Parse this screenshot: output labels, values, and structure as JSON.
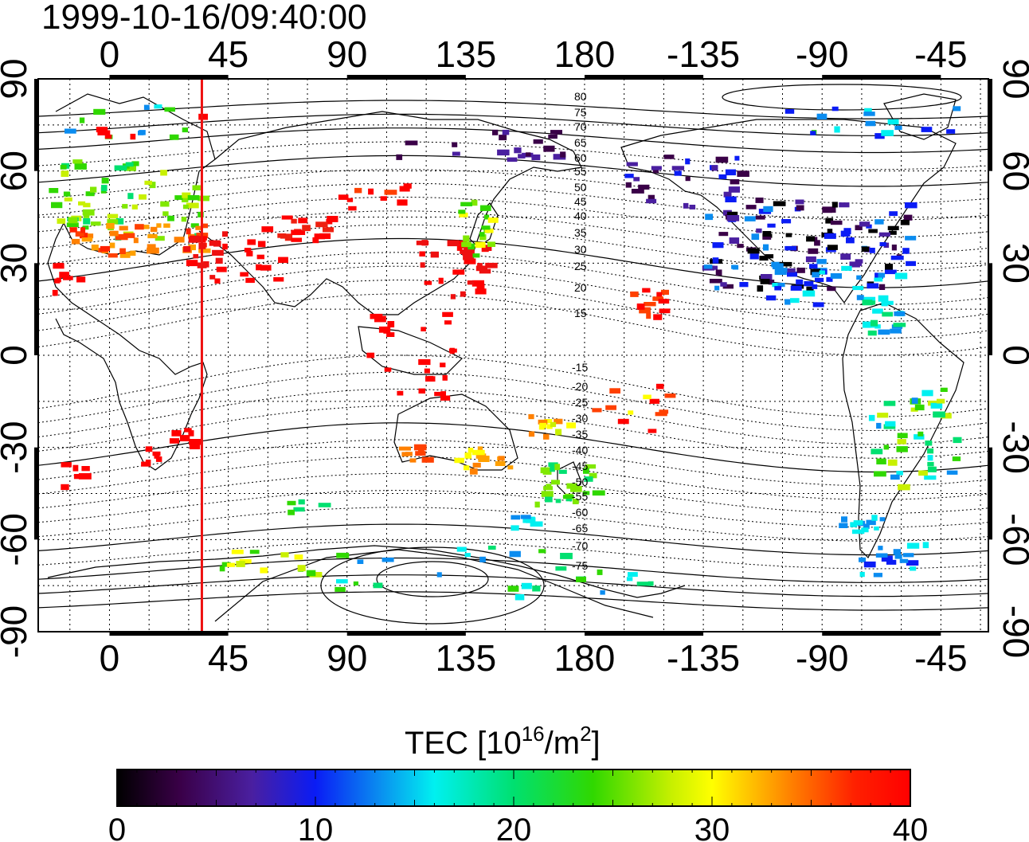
{
  "timestamp": "1999-10-16/09:40:00",
  "axes": {
    "top_ticks": [
      "0",
      "45",
      "90",
      "135",
      "180",
      "-135",
      "-90",
      "-45"
    ],
    "bottom_ticks": [
      "0",
      "45",
      "90",
      "135",
      "180",
      "-135",
      "-90",
      "-45"
    ],
    "left_ticks": [
      "90",
      "60",
      "30",
      "0",
      "-30",
      "-60",
      "-90"
    ],
    "right_ticks": [
      "90",
      "60",
      "30",
      "0",
      "-30",
      "-60",
      "-90"
    ]
  },
  "contour_labels": {
    "north": [
      "80",
      "75",
      "70",
      "65",
      "60",
      "55",
      "50",
      "45",
      "40",
      "35",
      "30",
      "25",
      "20",
      "15"
    ],
    "south": [
      "-15",
      "-20",
      "-25",
      "-30",
      "-35",
      "-40",
      "-45",
      "-50",
      "-55",
      "-60",
      "-65",
      "-70",
      "-75"
    ]
  },
  "colorbar": {
    "title_prefix": "TEC  [10",
    "title_sup1": "16",
    "title_mid": "/m",
    "title_sup2": "2",
    "title_suffix": "]",
    "ticks": [
      "0",
      "10",
      "20",
      "30",
      "40"
    ],
    "range": [
      0,
      40
    ]
  },
  "subsolar_meridian_longitude": 35,
  "colors": {
    "meridian": "#ee1111",
    "frame": "#000000"
  }
}
